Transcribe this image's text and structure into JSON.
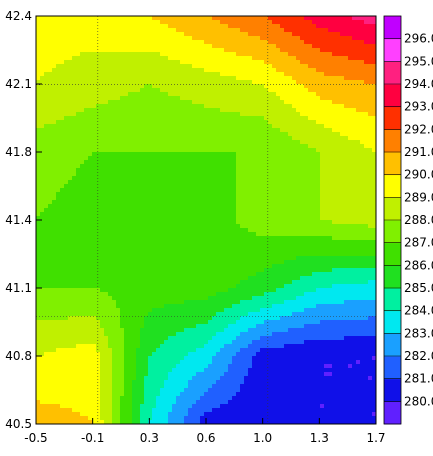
{
  "chart_data": {
    "type": "heatmap",
    "title": "",
    "xlabel": "",
    "ylabel": "",
    "xlim": [
      -0.5,
      1.7
    ],
    "ylim": [
      40.5,
      42.4
    ],
    "x_ticks": [
      "-0.5",
      "-0.1",
      "0.3",
      "0.6",
      "1.0",
      "1.3",
      "1.7"
    ],
    "y_ticks": [
      "40.5",
      "40.8",
      "41.1",
      "41.4",
      "41.8",
      "42.1",
      "42.4"
    ],
    "grid": "dashed lon/lat lines",
    "legend": "colorbar right",
    "colorbar": {
      "levels": [
        "280.0",
        "281.0",
        "282.0",
        "283.0",
        "284.0",
        "285.0",
        "286.0",
        "287.0",
        "288.0",
        "289.0",
        "290.0",
        "291.0",
        "292.0",
        "293.0",
        "294.0",
        "295.0",
        "296.0"
      ],
      "colors": [
        "#6020ff",
        "#1010e8",
        "#2060ff",
        "#1aa0ff",
        "#00e8f0",
        "#00f0a0",
        "#20e020",
        "#40e000",
        "#80f000",
        "#c0f000",
        "#ffff00",
        "#ffc000",
        "#ff8000",
        "#ff3000",
        "#ff0040",
        "#ff2080",
        "#ff40ff",
        "#c000ff"
      ]
    },
    "field": {
      "grid_x": [
        -0.5,
        -0.13,
        0.23,
        0.6,
        0.97,
        1.33,
        1.7
      ],
      "grid_y": [
        42.4,
        42.08,
        41.77,
        41.45,
        41.13,
        40.82,
        40.5
      ],
      "values": [
        [
          289.5,
          289.5,
          290.0,
          291.0,
          292.0,
          293.5,
          294.5
        ],
        [
          289.0,
          288.5,
          288.0,
          288.5,
          289.0,
          290.5,
          291.0
        ],
        [
          287.5,
          287.0,
          287.0,
          287.0,
          287.0,
          288.0,
          289.0
        ],
        [
          287.0,
          286.5,
          286.5,
          286.5,
          287.5,
          288.0,
          288.5
        ],
        [
          287.0,
          287.0,
          286.5,
          286.5,
          285.5,
          284.0,
          283.5
        ],
        [
          289.0,
          289.5,
          285.0,
          283.5,
          280.5,
          280.0,
          280.0
        ],
        [
          290.5,
          290.0,
          284.0,
          280.5,
          280.0,
          280.0,
          280.0
        ]
      ]
    }
  }
}
